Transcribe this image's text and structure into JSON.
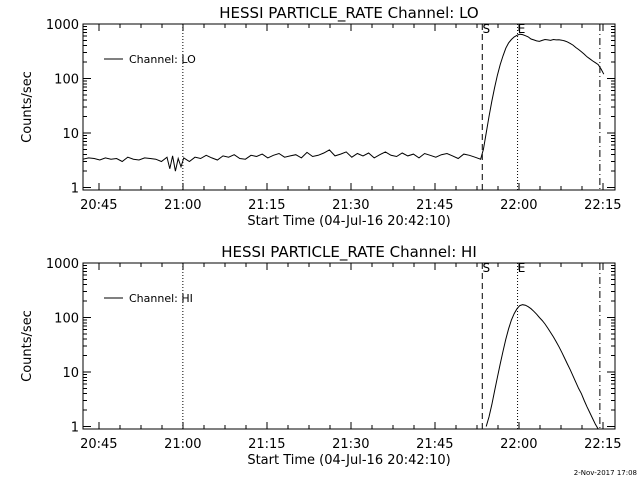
{
  "footer_text": "2-Nov-2017 17:08",
  "chart_data": [
    {
      "type": "line",
      "title": "HESSI PARTICLE_RATE Channel: LO",
      "xlabel": "Start Time (04-Jul-16 20:42:10)",
      "ylabel": "Counts/sec",
      "y_scale": "log",
      "x_unit": "minutes since 20:42:10 (start time)",
      "xlim": [
        0,
        95
      ],
      "ylim": [
        0.9,
        1000
      ],
      "x_ticks": [
        {
          "value": 2.83,
          "label": "20:45"
        },
        {
          "value": 17.83,
          "label": "21:00"
        },
        {
          "value": 32.83,
          "label": "21:15"
        },
        {
          "value": 47.83,
          "label": "21:30"
        },
        {
          "value": 62.83,
          "label": "21:45"
        },
        {
          "value": 77.83,
          "label": "22:00"
        },
        {
          "value": 92.83,
          "label": "22:15"
        }
      ],
      "y_ticks": [
        {
          "value": 1,
          "label": "1"
        },
        {
          "value": 10,
          "label": "10"
        },
        {
          "value": 100,
          "label": "100"
        },
        {
          "value": 1000,
          "label": "1000"
        }
      ],
      "legend": {
        "entry": "Channel: LO",
        "placement": "top-left"
      },
      "markers": [
        {
          "x": 17.83,
          "style": "dotted",
          "label": ""
        },
        {
          "x": 71.3,
          "style": "dashed",
          "label": "S"
        },
        {
          "x": 77.6,
          "style": "dotted",
          "label": "E"
        },
        {
          "x": 92.3,
          "style": "dashdot",
          "label": ""
        }
      ],
      "series": [
        {
          "name": "Channel: LO",
          "x": [
            0.0,
            1.0,
            2.0,
            3.0,
            4.0,
            5.0,
            6.0,
            7.0,
            8.0,
            9.0,
            10.0,
            11.0,
            12.0,
            13.0,
            14.0,
            15.0,
            15.5,
            16.0,
            16.5,
            17.0,
            17.5,
            18.0,
            19.0,
            20.0,
            21.0,
            22.0,
            23.0,
            24.0,
            25.0,
            26.0,
            27.0,
            28.0,
            29.0,
            30.0,
            31.0,
            32.0,
            33.0,
            34.0,
            35.0,
            36.0,
            37.0,
            38.0,
            39.0,
            40.0,
            41.0,
            42.0,
            43.0,
            44.0,
            45.0,
            46.0,
            47.0,
            48.0,
            49.0,
            50.0,
            51.0,
            52.0,
            53.0,
            54.0,
            55.0,
            56.0,
            57.0,
            58.0,
            59.0,
            60.0,
            61.0,
            62.0,
            63.0,
            64.0,
            65.0,
            66.0,
            67.0,
            68.0,
            69.0,
            70.0,
            71.0,
            71.5,
            72.0,
            72.5,
            73.0,
            73.5,
            74.0,
            74.5,
            75.0,
            75.5,
            76.0,
            76.5,
            77.0,
            77.5,
            78.0,
            78.5,
            79.0,
            79.5,
            80.0,
            80.5,
            81.0,
            81.5,
            82.0,
            82.5,
            83.0,
            83.5,
            84.0,
            84.5,
            85.0,
            85.5,
            86.0,
            86.5,
            87.0,
            87.5,
            88.0,
            88.5,
            89.0,
            89.5,
            90.0,
            90.5,
            91.0,
            91.5,
            92.0,
            92.5,
            93.0
          ],
          "y": [
            3.3,
            3.5,
            3.4,
            3.2,
            3.5,
            3.3,
            3.4,
            3.0,
            3.6,
            3.3,
            3.2,
            3.5,
            3.4,
            3.3,
            3.0,
            3.6,
            2.2,
            3.8,
            2.0,
            3.4,
            2.4,
            3.5,
            3.0,
            3.6,
            3.4,
            3.9,
            3.5,
            3.2,
            3.8,
            3.6,
            4.0,
            3.4,
            3.3,
            3.9,
            3.7,
            4.1,
            3.5,
            3.9,
            4.2,
            3.6,
            3.8,
            4.0,
            3.5,
            4.4,
            3.7,
            3.9,
            4.3,
            4.9,
            3.8,
            4.1,
            4.5,
            3.6,
            4.2,
            3.8,
            4.3,
            3.5,
            4.0,
            4.5,
            3.9,
            3.7,
            4.3,
            3.8,
            4.1,
            3.5,
            4.2,
            3.9,
            3.6,
            4.0,
            4.2,
            3.8,
            3.4,
            4.1,
            3.9,
            3.6,
            3.3,
            5.0,
            10.0,
            20.0,
            38.0,
            68.0,
            115.0,
            180.0,
            260.0,
            360.0,
            450.0,
            520.0,
            580.0,
            620.0,
            650.0,
            640.0,
            610.0,
            580.0,
            530.0,
            510.0,
            490.0,
            480.0,
            500.0,
            520.0,
            510.0,
            500.0,
            520.0,
            510.0,
            515.0,
            505.0,
            490.0,
            470.0,
            440.0,
            410.0,
            370.0,
            340.0,
            310.0,
            280.0,
            250.0,
            230.0,
            210.0,
            195.0,
            180.0,
            150.0,
            120.0
          ]
        }
      ]
    },
    {
      "type": "line",
      "title": "HESSI PARTICLE_RATE Channel: HI",
      "xlabel": "Start Time (04-Jul-16 20:42:10)",
      "ylabel": "Counts/sec",
      "y_scale": "log",
      "x_unit": "minutes since 20:42:10 (start time)",
      "xlim": [
        0,
        95
      ],
      "ylim": [
        0.9,
        1000
      ],
      "x_ticks": [
        {
          "value": 2.83,
          "label": "20:45"
        },
        {
          "value": 17.83,
          "label": "21:00"
        },
        {
          "value": 32.83,
          "label": "21:15"
        },
        {
          "value": 47.83,
          "label": "21:30"
        },
        {
          "value": 62.83,
          "label": "21:45"
        },
        {
          "value": 77.83,
          "label": "22:00"
        },
        {
          "value": 92.83,
          "label": "22:15"
        }
      ],
      "y_ticks": [
        {
          "value": 1,
          "label": "1"
        },
        {
          "value": 10,
          "label": "10"
        },
        {
          "value": 100,
          "label": "100"
        },
        {
          "value": 1000,
          "label": "1000"
        }
      ],
      "legend": {
        "entry": "Channel: HI",
        "placement": "top-left"
      },
      "markers": [
        {
          "x": 17.83,
          "style": "dotted",
          "label": ""
        },
        {
          "x": 71.3,
          "style": "dashed",
          "label": "S"
        },
        {
          "x": 77.6,
          "style": "dotted",
          "label": "E"
        },
        {
          "x": 92.3,
          "style": "dashdot",
          "label": ""
        }
      ],
      "series": [
        {
          "name": "Channel: HI",
          "x": [
            72.0,
            72.5,
            73.0,
            73.5,
            74.0,
            74.5,
            75.0,
            75.5,
            76.0,
            76.5,
            77.0,
            77.5,
            78.0,
            78.5,
            79.0,
            79.5,
            80.0,
            80.5,
            81.0,
            81.5,
            82.0,
            82.5,
            83.0,
            83.5,
            84.0,
            84.5,
            85.0,
            85.5,
            86.0,
            86.5,
            87.0,
            87.5,
            88.0,
            88.5,
            89.0,
            89.5,
            90.0,
            90.5,
            91.0,
            91.5,
            92.0
          ],
          "y": [
            1.0,
            1.5,
            2.5,
            4.5,
            8.0,
            14.0,
            24.0,
            40.0,
            62.0,
            90.0,
            118.0,
            145.0,
            165.0,
            172.0,
            168.0,
            158.0,
            145.0,
            130.0,
            115.0,
            100.0,
            88.0,
            76.0,
            64.0,
            53.0,
            44.0,
            36.0,
            29.0,
            23.0,
            18.0,
            14.0,
            11.0,
            8.5,
            6.5,
            5.0,
            4.0,
            3.0,
            2.3,
            1.8,
            1.4,
            1.1,
            0.9
          ]
        }
      ]
    }
  ]
}
